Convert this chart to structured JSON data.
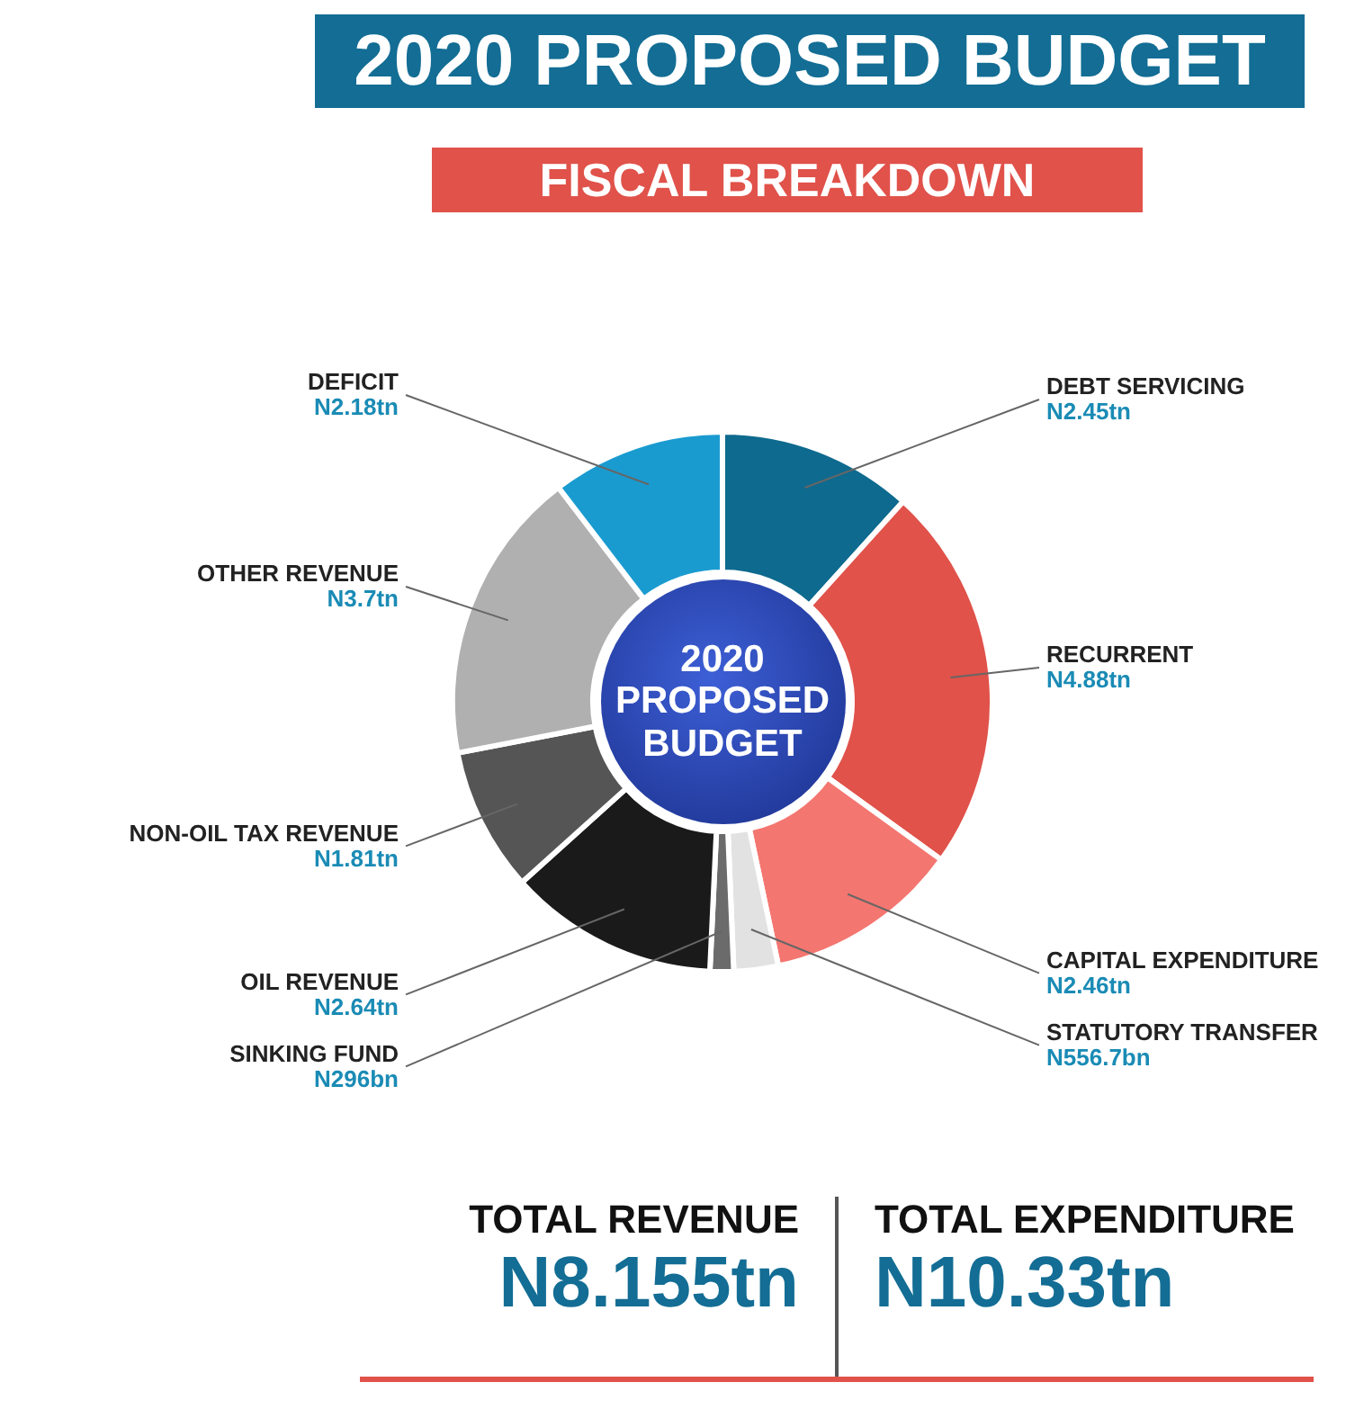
{
  "chart_data": {
    "type": "donut",
    "title": "2020 PROPOSED BUDGET",
    "subtitle": "FISCAL BREAKDOWN",
    "categories": [
      "DEBT SERVICING",
      "RECURRENT",
      "CAPITAL EXPENDITURE",
      "STATUTORY TRANSFER",
      "SINKING FUND",
      "OIL REVENUE",
      "NON-OIL TAX REVENUE",
      "OTHER REVENUE",
      "DEFICIT"
    ],
    "values": [
      2.45,
      4.88,
      2.46,
      0.5567,
      0.296,
      2.64,
      1.81,
      3.7,
      2.18
    ],
    "value_labels": [
      "N2.45tn",
      "N4.88tn",
      "N2.46tn",
      "N556.7bn",
      "N296bn",
      "N2.64tn",
      "N1.81tn",
      "N3.7tn",
      "N2.18tn"
    ],
    "colors": [
      "#0e6a8e",
      "#e0524a",
      "#f47670",
      "#e2e2e2",
      "#6b6b6b",
      "#1a1a1a",
      "#555555",
      "#b0b0b0",
      "#1a9bd0"
    ],
    "legend": false,
    "annotations": [
      "2020 PROPOSED BUDGET",
      "TOTAL REVENUE",
      "N8.155tn",
      "TOTAL EXPENDITURE",
      "N10.33tn"
    ]
  }
}
